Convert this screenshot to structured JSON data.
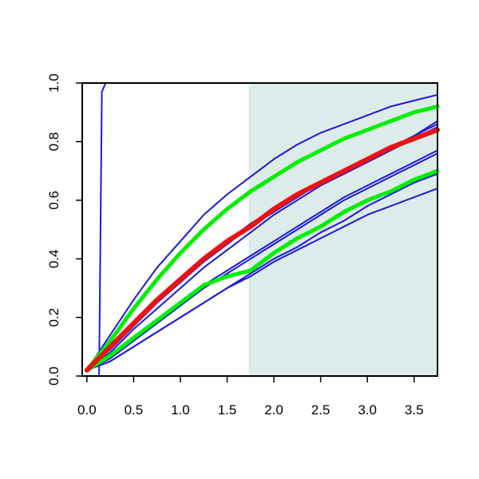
{
  "chart_data": {
    "type": "line",
    "title": "",
    "xlabel": "",
    "ylabel": "",
    "xlim": [
      -0.05,
      3.75
    ],
    "ylim": [
      0,
      1
    ],
    "x_ticks": [
      0,
      0.5,
      1,
      1.5,
      2,
      2.5,
      3,
      3.5
    ],
    "x_tick_labels": [
      "0.0",
      "0.5",
      "1.0",
      "1.5",
      "2.0",
      "2.5",
      "3.0",
      "3.5"
    ],
    "y_ticks": [
      0,
      0.2,
      0.4,
      0.6,
      0.8,
      1
    ],
    "y_tick_labels": [
      "0.0",
      "0.2",
      "0.4",
      "0.6",
      "0.8",
      "1.0"
    ],
    "shaded_region": {
      "x_from": 1.73,
      "x_to": 3.75,
      "color": "#deebeb"
    },
    "grid": false,
    "legend": "none",
    "x": [
      0,
      0.25,
      0.5,
      0.75,
      1,
      1.25,
      1.5,
      1.75,
      2,
      2.25,
      2.5,
      2.75,
      3,
      3.25,
      3.5,
      3.75
    ],
    "series": [
      {
        "color": "#1a1adb",
        "width": 2,
        "values": [
          0.02,
          0.14,
          0.26,
          0.37,
          0.46,
          0.55,
          0.62,
          0.68,
          0.74,
          0.79,
          0.83,
          0.86,
          0.89,
          0.92,
          0.94,
          0.96
        ]
      },
      {
        "color": "#1a1adb",
        "width": 2,
        "values": [
          0.02,
          0.1,
          0.18,
          0.26,
          0.33,
          0.4,
          0.46,
          0.52,
          0.57,
          0.62,
          0.66,
          0.7,
          0.74,
          0.78,
          0.82,
          0.87
        ]
      },
      {
        "color": "#1a1adb",
        "width": 2,
        "values": [
          0.02,
          0.09,
          0.17,
          0.25,
          0.32,
          0.39,
          0.45,
          0.51,
          0.56,
          0.61,
          0.66,
          0.7,
          0.74,
          0.78,
          0.82,
          0.86
        ]
      },
      {
        "color": "#1a1adb",
        "width": 2,
        "values": [
          0.02,
          0.08,
          0.16,
          0.23,
          0.3,
          0.37,
          0.43,
          0.49,
          0.55,
          0.6,
          0.65,
          0.69,
          0.73,
          0.77,
          0.81,
          0.85
        ]
      },
      {
        "color": "#1a1adb",
        "width": 2,
        "values": [
          0.02,
          0.07,
          0.13,
          0.19,
          0.25,
          0.31,
          0.36,
          0.41,
          0.46,
          0.51,
          0.56,
          0.61,
          0.65,
          0.69,
          0.73,
          0.77
        ]
      },
      {
        "color": "#1a1adb",
        "width": 2,
        "values": [
          0.02,
          0.06,
          0.12,
          0.18,
          0.24,
          0.3,
          0.35,
          0.4,
          0.45,
          0.5,
          0.55,
          0.6,
          0.64,
          0.68,
          0.72,
          0.76
        ]
      },
      {
        "color": "#1a1adb",
        "width": 2,
        "values": [
          0.02,
          0.05,
          0.1,
          0.15,
          0.2,
          0.25,
          0.3,
          0.35,
          0.4,
          0.44,
          0.49,
          0.53,
          0.58,
          0.62,
          0.66,
          0.69
        ]
      },
      {
        "color": "#1a1adb",
        "width": 2,
        "values": [
          0.02,
          0.05,
          0.1,
          0.15,
          0.2,
          0.25,
          0.3,
          0.34,
          0.39,
          0.43,
          0.47,
          0.51,
          0.55,
          0.58,
          0.61,
          0.64
        ]
      },
      {
        "color": "#1a1adb",
        "width": 2,
        "values": [
          0.0,
          0.0,
          1.0,
          1.0,
          1.0,
          1.0,
          1.0,
          1.0,
          1.0,
          1.0,
          1.0,
          1.0,
          1.0,
          1.0,
          1.0,
          1.0
        ]
      },
      {
        "color": "#00ee00",
        "width": 5,
        "values": [
          0.02,
          0.12,
          0.23,
          0.33,
          0.42,
          0.5,
          0.57,
          0.63,
          0.68,
          0.73,
          0.77,
          0.81,
          0.84,
          0.87,
          0.9,
          0.92
        ]
      },
      {
        "color": "#00ee00",
        "width": 5,
        "values": [
          0.02,
          0.07,
          0.13,
          0.19,
          0.25,
          0.31,
          0.34,
          0.36,
          0.42,
          0.47,
          0.51,
          0.56,
          0.6,
          0.63,
          0.67,
          0.7
        ]
      },
      {
        "color": "#ee1111",
        "width": 6,
        "values": [
          0.02,
          0.1,
          0.18,
          0.26,
          0.33,
          0.4,
          0.46,
          0.51,
          0.57,
          0.62,
          0.66,
          0.7,
          0.74,
          0.78,
          0.81,
          0.84
        ]
      }
    ]
  }
}
